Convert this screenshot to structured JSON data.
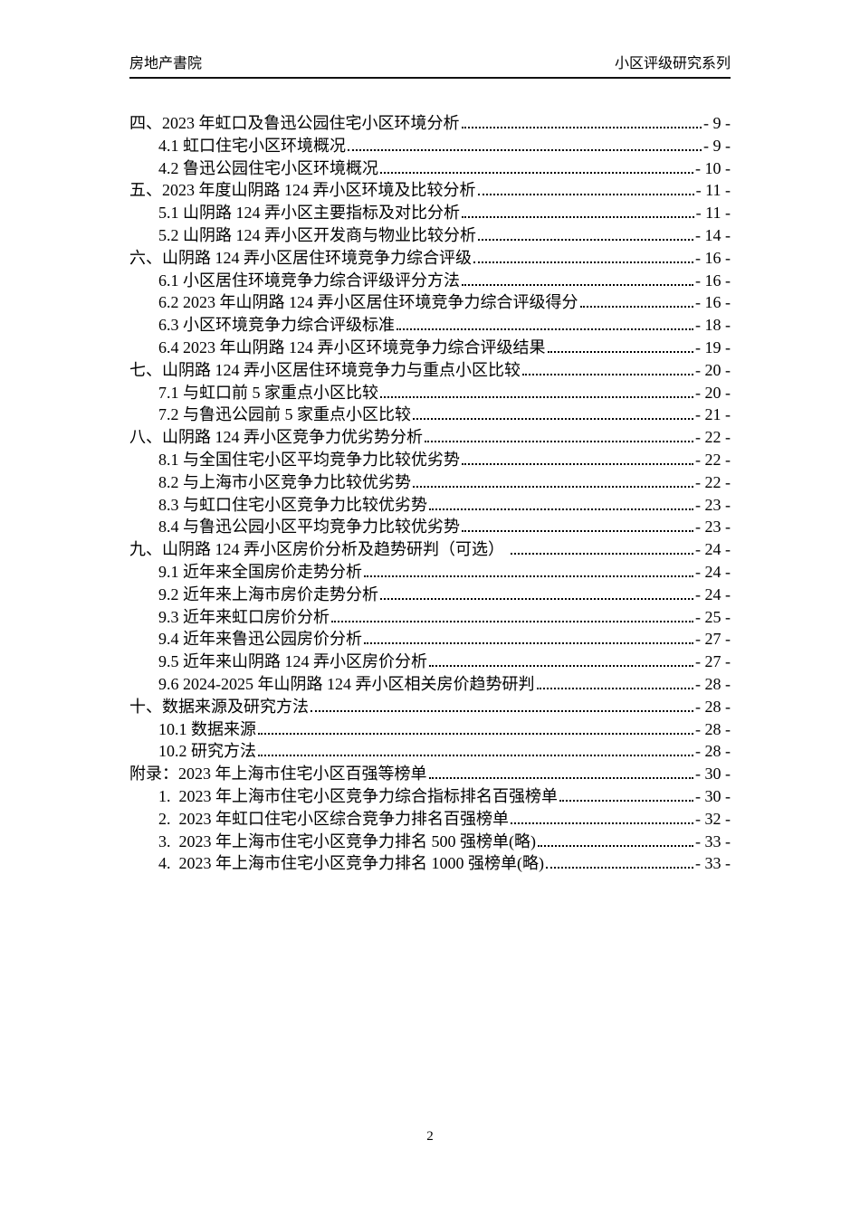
{
  "colors": {
    "text": "#000000",
    "background": "#ffffff",
    "rule": "#111111"
  },
  "header": {
    "left": "房地产書院",
    "right": "小区评级研究系列"
  },
  "toc": {
    "entries": [
      {
        "level": 1,
        "text": "四、2023 年虹口及鲁迅公园住宅小区环境分析",
        "page": "- 9 -"
      },
      {
        "level": 2,
        "text": "4.1 虹口住宅小区环境概况",
        "page": "- 9 -"
      },
      {
        "level": 2,
        "text": "4.2 鲁迅公园住宅小区环境概况",
        "page": "- 10 -"
      },
      {
        "level": 1,
        "text": "五、2023 年度山阴路 124 弄小区环境及比较分析",
        "page": "- 11 -"
      },
      {
        "level": 2,
        "text": "5.1 山阴路 124 弄小区主要指标及对比分析",
        "page": "- 11 -"
      },
      {
        "level": 2,
        "text": "5.2 山阴路 124 弄小区开发商与物业比较分析",
        "page": "- 14 -"
      },
      {
        "level": 1,
        "text": "六、山阴路 124 弄小区居住环境竞争力综合评级",
        "page": "- 16 -"
      },
      {
        "level": 2,
        "text": "6.1 小区居住环境竞争力综合评级评分方法",
        "page": "- 16 -"
      },
      {
        "level": 2,
        "text": "6.2 2023 年山阴路 124 弄小区居住环境竞争力综合评级得分",
        "page": "- 16 -"
      },
      {
        "level": 2,
        "text": "6.3 小区环境竞争力综合评级标准",
        "page": "- 18 -"
      },
      {
        "level": 2,
        "text": "6.4 2023 年山阴路 124 弄小区环境竞争力综合评级结果",
        "page": "- 19 -"
      },
      {
        "level": 1,
        "text": "七、山阴路 124 弄小区居住环境竞争力与重点小区比较",
        "page": "- 20 -"
      },
      {
        "level": 2,
        "text": "7.1 与虹口前 5 家重点小区比较",
        "page": "- 20 -"
      },
      {
        "level": 2,
        "text": "7.2 与鲁迅公园前 5 家重点小区比较",
        "page": "- 21 -"
      },
      {
        "level": 1,
        "text": "八、山阴路 124 弄小区竞争力优劣势分析",
        "page": "- 22 -"
      },
      {
        "level": 2,
        "text": "8.1 与全国住宅小区平均竞争力比较优劣势",
        "page": "- 22 -"
      },
      {
        "level": 2,
        "text": "8.2 与上海市小区竞争力比较优劣势",
        "page": "- 22 -"
      },
      {
        "level": 2,
        "text": "8.3 与虹口住宅小区竞争力比较优劣势",
        "page": "- 23 -"
      },
      {
        "level": 2,
        "text": "8.4 与鲁迅公园小区平均竞争力比较优劣势",
        "page": "- 23 -"
      },
      {
        "level": 1,
        "text": "九、山阴路 124 弄小区房价分析及趋势研判（可选） ",
        "page": "- 24 -"
      },
      {
        "level": 2,
        "text": "9.1 近年来全国房价走势分析",
        "page": "- 24 -"
      },
      {
        "level": 2,
        "text": "9.2 近年来上海市房价走势分析",
        "page": "- 24 -"
      },
      {
        "level": 2,
        "text": "9.3 近年来虹口房价分析",
        "page": "- 25 -"
      },
      {
        "level": 2,
        "text": "9.4 近年来鲁迅公园房价分析",
        "page": "- 27 -"
      },
      {
        "level": 2,
        "text": "9.5 近年来山阴路 124 弄小区房价分析",
        "page": "- 27 -"
      },
      {
        "level": 2,
        "text": "9.6 2024-2025 年山阴路 124 弄小区相关房价趋势研判",
        "page": "- 28 -"
      },
      {
        "level": 1,
        "text": "十、数据来源及研究方法",
        "page": "- 28 -"
      },
      {
        "level": 2,
        "text": "10.1 数据来源",
        "page": "- 28 -"
      },
      {
        "level": 2,
        "text": "10.2 研究方法",
        "page": "- 28 -"
      },
      {
        "level": 1,
        "text": "附录：2023 年上海市住宅小区百强等榜单",
        "page": "- 30 -"
      },
      {
        "level": 2,
        "text": "1.  2023 年上海市住宅小区竞争力综合指标排名百强榜单",
        "page": "- 30 -"
      },
      {
        "level": 2,
        "text": "2.  2023 年虹口住宅小区综合竞争力排名百强榜单",
        "page": "- 32 -"
      },
      {
        "level": 2,
        "text": "3.  2023 年上海市住宅小区竞争力排名 500 强榜单(略)",
        "page": "- 33 -"
      },
      {
        "level": 2,
        "text": "4.  2023 年上海市住宅小区竞争力排名 1000 强榜单(略)",
        "page": "- 33 -"
      }
    ]
  },
  "footer": {
    "page_number": "2"
  }
}
